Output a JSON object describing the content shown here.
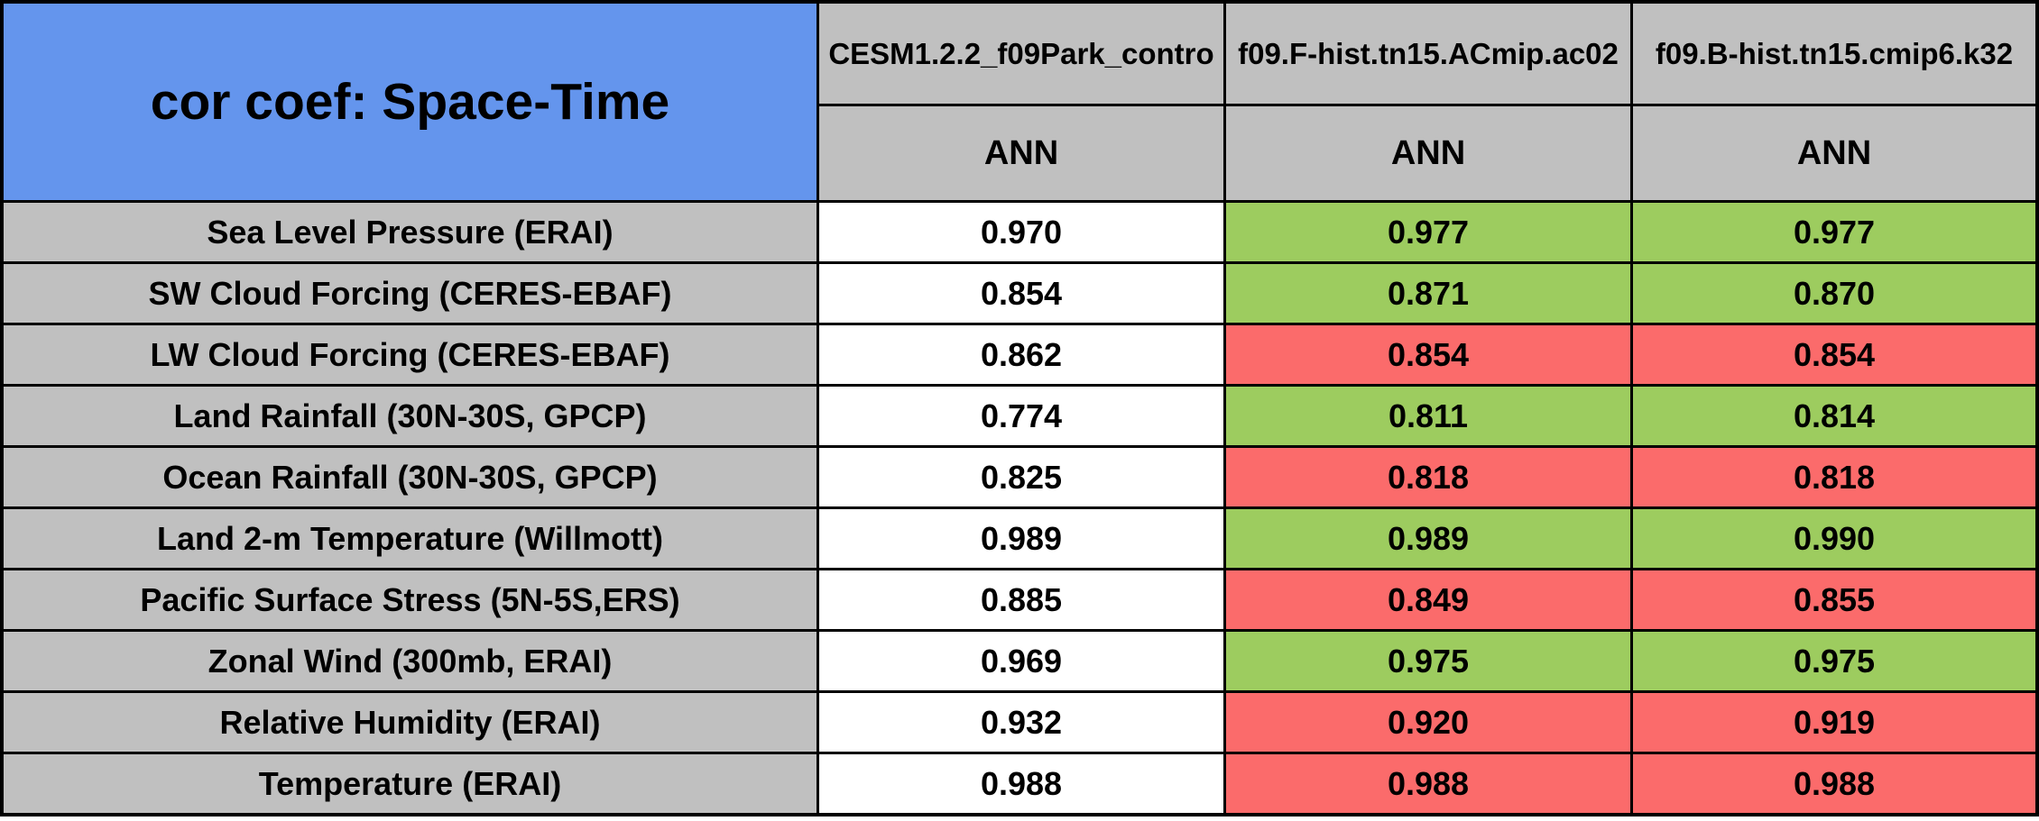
{
  "colors": {
    "title_cell_blue": "#6495ED",
    "header_gray": "#C0C0C0",
    "better_green": "#9DCC5F",
    "worse_red": "#FB6B6B",
    "control_white": "#FFFFFF",
    "grid_border_black": "#000000",
    "text_black": "#000000"
  },
  "chart_data": {
    "type": "table",
    "title": "cor coef: Space-Time",
    "column_headers": [
      "CESM1.2.2_f09Park_contro",
      "f09.F-hist.tn15.ACmip.ac02",
      "f09.B-hist.tn15.cmip6.k32"
    ],
    "season_row": [
      "ANN",
      "ANN",
      "ANN"
    ],
    "rows": [
      {
        "label": "Sea Level Pressure (ERAI)",
        "values": [
          "0.970",
          "0.977",
          "0.977"
        ],
        "cell_colors": [
          "white",
          "green",
          "green"
        ]
      },
      {
        "label": "SW Cloud Forcing (CERES-EBAF)",
        "values": [
          "0.854",
          "0.871",
          "0.870"
        ],
        "cell_colors": [
          "white",
          "green",
          "green"
        ]
      },
      {
        "label": "LW Cloud Forcing (CERES-EBAF)",
        "values": [
          "0.862",
          "0.854",
          "0.854"
        ],
        "cell_colors": [
          "white",
          "red",
          "red"
        ]
      },
      {
        "label": "Land Rainfall (30N-30S, GPCP)",
        "values": [
          "0.774",
          "0.811",
          "0.814"
        ],
        "cell_colors": [
          "white",
          "green",
          "green"
        ]
      },
      {
        "label": "Ocean Rainfall (30N-30S, GPCP)",
        "values": [
          "0.825",
          "0.818",
          "0.818"
        ],
        "cell_colors": [
          "white",
          "red",
          "red"
        ]
      },
      {
        "label": "Land 2-m Temperature (Willmott)",
        "values": [
          "0.989",
          "0.989",
          "0.990"
        ],
        "cell_colors": [
          "white",
          "green",
          "green"
        ]
      },
      {
        "label": "Pacific Surface Stress (5N-5S,ERS)",
        "values": [
          "0.885",
          "0.849",
          "0.855"
        ],
        "cell_colors": [
          "white",
          "red",
          "red"
        ]
      },
      {
        "label": "Zonal Wind (300mb, ERAI)",
        "values": [
          "0.969",
          "0.975",
          "0.975"
        ],
        "cell_colors": [
          "white",
          "green",
          "green"
        ]
      },
      {
        "label": "Relative Humidity (ERAI)",
        "values": [
          "0.932",
          "0.920",
          "0.919"
        ],
        "cell_colors": [
          "white",
          "red",
          "red"
        ]
      },
      {
        "label": "Temperature (ERAI)",
        "values": [
          "0.988",
          "0.988",
          "0.988"
        ],
        "cell_colors": [
          "white",
          "red",
          "red"
        ]
      }
    ]
  }
}
